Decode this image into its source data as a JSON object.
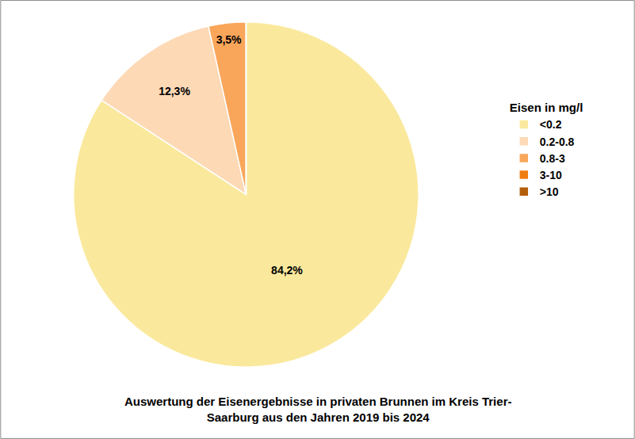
{
  "chart_data": {
    "type": "pie",
    "title": "Auswertung der Eisenergebnisse in privaten Brunnen im Kreis Trier-Saarburg aus den Jahren 2019 bis 2024",
    "legend_title": "Eisen in mg/l",
    "categories": [
      "<0.2",
      "0.2-0.8",
      "0.8-3",
      "3-10",
      ">10"
    ],
    "values": [
      84.2,
      12.3,
      3.5,
      0,
      0
    ],
    "value_labels": [
      "84,2%",
      "12,3%",
      "3,5%",
      null,
      null
    ],
    "colors": [
      "#fae99d",
      "#fdd9b6",
      "#f9a65a",
      "#f07d12",
      "#b35e0b"
    ],
    "data_labels": true,
    "legend": "right"
  }
}
